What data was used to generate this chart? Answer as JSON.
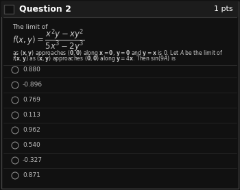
{
  "title": "Question 2",
  "pts": "1 pts",
  "bg_color": "#111111",
  "border_color": "#444444",
  "text_color": "#cccccc",
  "header_text_color": "#ffffff",
  "the_limit_of": "The limit of",
  "options": [
    "0.880",
    "-0.896",
    "0.769",
    "0.113",
    "0.962",
    "0.540",
    "-0.327",
    "0.871"
  ],
  "divider_color": "#333333",
  "circle_color": "#888888",
  "option_text_color": "#bbbbbb"
}
